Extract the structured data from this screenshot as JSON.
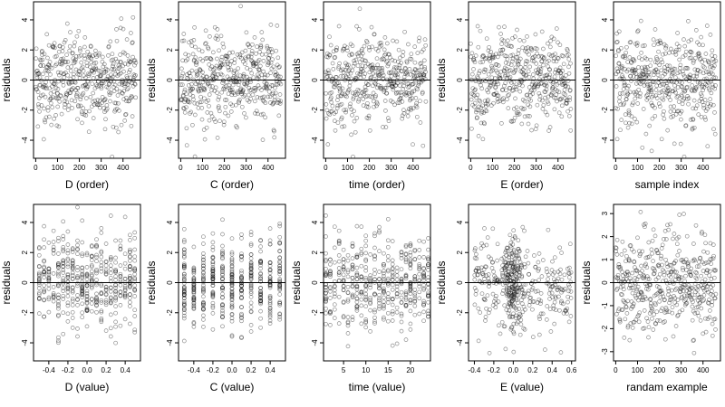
{
  "figure": {
    "background": "#ffffff",
    "point_color": "#000000"
  },
  "chart_data": [
    {
      "type": "scatter",
      "xlabel": "D (order)",
      "ylabel": "residuals",
      "xlim": [
        -10,
        480
      ],
      "ylim": [
        -5.2,
        5.2
      ],
      "xticks": [
        0,
        100,
        200,
        300,
        400
      ],
      "xtick_labels": [
        "0",
        "100",
        "200",
        "300",
        "400"
      ],
      "yticks": [
        -4,
        -2,
        0,
        2,
        4
      ],
      "ytick_labels": [
        "-4",
        "-2",
        "0",
        "2",
        "4"
      ],
      "hline": 0,
      "n_points": 460,
      "x_kind": "index",
      "x_step": 1
    },
    {
      "type": "scatter",
      "xlabel": "C (order)",
      "ylabel": "residuals",
      "xlim": [
        -10,
        480
      ],
      "ylim": [
        -5.2,
        5.2
      ],
      "xticks": [
        0,
        100,
        200,
        300,
        400
      ],
      "xtick_labels": [
        "0",
        "100",
        "200",
        "300",
        "400"
      ],
      "yticks": [
        -4,
        -2,
        0,
        2,
        4
      ],
      "ytick_labels": [
        "-4",
        "-2",
        "0",
        "2",
        "4"
      ],
      "hline": 0,
      "n_points": 460,
      "x_kind": "index",
      "x_step": 1
    },
    {
      "type": "scatter",
      "xlabel": "time (order)",
      "ylabel": "residuals",
      "xlim": [
        -10,
        480
      ],
      "ylim": [
        -5.2,
        5.2
      ],
      "xticks": [
        0,
        100,
        200,
        300,
        400
      ],
      "xtick_labels": [
        "0",
        "100",
        "200",
        "300",
        "400"
      ],
      "yticks": [
        -4,
        -2,
        0,
        2,
        4
      ],
      "ytick_labels": [
        "-4",
        "-2",
        "0",
        "2",
        "4"
      ],
      "hline": 0,
      "n_points": 460,
      "x_kind": "index",
      "x_step": 1
    },
    {
      "type": "scatter",
      "xlabel": "E (order)",
      "ylabel": "residuals",
      "xlim": [
        -10,
        480
      ],
      "ylim": [
        -5.2,
        5.2
      ],
      "xticks": [
        0,
        100,
        200,
        300,
        400
      ],
      "xtick_labels": [
        "0",
        "100",
        "200",
        "300",
        "400"
      ],
      "yticks": [
        -4,
        -2,
        0,
        2,
        4
      ],
      "ytick_labels": [
        "-4",
        "-2",
        "0",
        "2",
        "4"
      ],
      "hline": 0,
      "n_points": 460,
      "x_kind": "index",
      "x_step": 1
    },
    {
      "type": "scatter",
      "xlabel": "sample index",
      "ylabel": "residuals",
      "xlim": [
        -10,
        480
      ],
      "ylim": [
        -5.2,
        5.2
      ],
      "xticks": [
        0,
        100,
        200,
        300,
        400
      ],
      "xtick_labels": [
        "0",
        "100",
        "200",
        "300",
        "400"
      ],
      "yticks": [
        -4,
        -2,
        0,
        2,
        4
      ],
      "ytick_labels": [
        "-4",
        "-2",
        "0",
        "2",
        "4"
      ],
      "hline": 0,
      "n_points": 460,
      "x_kind": "index",
      "x_step": 1
    },
    {
      "type": "scatter",
      "xlabel": "D (value)",
      "ylabel": "residuals",
      "xlim": [
        -0.56,
        0.56
      ],
      "ylim": [
        -5.2,
        5.2
      ],
      "xticks": [
        -0.4,
        -0.2,
        0.0,
        0.2,
        0.4
      ],
      "xtick_labels": [
        "-0.4",
        "-0.2",
        "0.0",
        "0.2",
        "0.4"
      ],
      "yticks": [
        -4,
        -2,
        0,
        2,
        4
      ],
      "ytick_labels": [
        "-4",
        "-2",
        "0",
        "2",
        "4"
      ],
      "hline": 0,
      "n_points": 460,
      "x_kind": "discrete",
      "x_values": [
        -0.5,
        -0.45,
        -0.4,
        -0.35,
        -0.3,
        -0.25,
        -0.2,
        -0.15,
        -0.1,
        -0.05,
        0.0,
        0.05,
        0.1,
        0.15,
        0.2,
        0.25,
        0.3,
        0.35,
        0.4,
        0.45,
        0.5
      ]
    },
    {
      "type": "scatter",
      "xlabel": "C (value)",
      "ylabel": "residuals",
      "xlim": [
        -0.56,
        0.56
      ],
      "ylim": [
        -5.2,
        5.2
      ],
      "xticks": [
        -0.4,
        -0.2,
        0.0,
        0.2,
        0.4
      ],
      "xtick_labels": [
        "-0.4",
        "-0.2",
        "0.0",
        "0.2",
        "0.4"
      ],
      "yticks": [
        -4,
        -2,
        0,
        2,
        4
      ],
      "ytick_labels": [
        "-4",
        "-2",
        "0",
        "2",
        "4"
      ],
      "hline": 0,
      "n_points": 460,
      "x_kind": "discrete",
      "x_values": [
        -0.5,
        -0.4,
        -0.3,
        -0.2,
        -0.1,
        0.0,
        0.1,
        0.2,
        0.3,
        0.4,
        0.5
      ]
    },
    {
      "type": "scatter",
      "xlabel": "time (value)",
      "ylabel": "residuals",
      "xlim": [
        0.5,
        24.5
      ],
      "ylim": [
        -5.2,
        5.2
      ],
      "xticks": [
        5,
        10,
        15,
        20
      ],
      "xtick_labels": [
        "5",
        "10",
        "15",
        "20"
      ],
      "yticks": [
        -4,
        -2,
        0,
        2,
        4
      ],
      "ytick_labels": [
        "-4",
        "-2",
        "0",
        "2",
        "4"
      ],
      "hline": 0,
      "n_points": 460,
      "x_kind": "discrete",
      "x_values": [
        1,
        2,
        3,
        4,
        5,
        6,
        7,
        8,
        9,
        10,
        11,
        12,
        13,
        14,
        15,
        16,
        17,
        18,
        19,
        20,
        21,
        22,
        23,
        24
      ]
    },
    {
      "type": "scatter",
      "xlabel": "E (value)",
      "ylabel": "residuals",
      "xlim": [
        -0.46,
        0.64
      ],
      "ylim": [
        -5.2,
        5.2
      ],
      "xticks": [
        -0.4,
        -0.2,
        0.0,
        0.2,
        0.4,
        0.6
      ],
      "xtick_labels": [
        "-0.4",
        "-0.2",
        "0.0",
        "0.2",
        "0.4",
        "0.6"
      ],
      "yticks": [
        -4,
        -2,
        0,
        2,
        4
      ],
      "ytick_labels": [
        "-4",
        "-2",
        "0",
        "2",
        "4"
      ],
      "hline": 0,
      "n_points": 460,
      "x_kind": "continuous",
      "x_range": [
        -0.4,
        0.6
      ],
      "x_cluster": 0.0
    },
    {
      "type": "scatter",
      "xlabel": "randam example",
      "ylabel": "residuals",
      "xlim": [
        -10,
        480
      ],
      "ylim": [
        -3.4,
        3.4
      ],
      "xticks": [
        0,
        100,
        200,
        300,
        400
      ],
      "xtick_labels": [
        "0",
        "100",
        "200",
        "300",
        "400"
      ],
      "yticks": [
        -3,
        -2,
        -1,
        0,
        1,
        2,
        3
      ],
      "ytick_labels": [
        "-3",
        "-2",
        "-1",
        "0",
        "1",
        "2",
        "3"
      ],
      "hline": 0,
      "n_points": 460,
      "x_kind": "index",
      "x_step": 1
    }
  ]
}
